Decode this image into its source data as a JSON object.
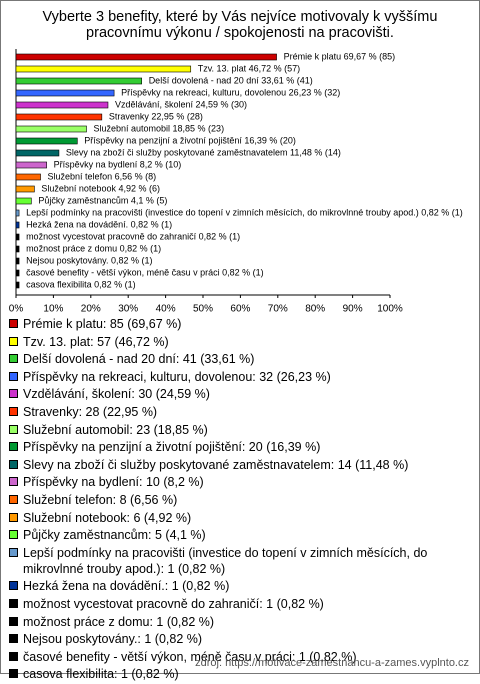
{
  "chart_data": {
    "type": "hbar",
    "title": "Vyberte 3 benefity, které by Vás nejvíce motivovaly k vyššímu pracovnímu výkonu / spokojenosti na pracovišti.",
    "values": [
      69.67,
      46.72,
      33.61,
      26.23,
      24.59,
      22.95,
      18.85,
      16.39,
      11.48,
      8.2,
      6.56,
      4.92,
      4.1,
      0.82,
      0.82,
      0.82,
      0.82,
      0.82,
      0.82,
      0.82
    ],
    "value_labels": [
      "Prémie k platu 69,67 % (85)",
      "Tzv. 13. plat 46,72 % (57)",
      "Delší dovolená - nad 20 dní 33,61 % (41)",
      "Příspěvky na rekreaci, kulturu, dovolenou 26,23 % (32)",
      "Vzdělávání, školení 24,59 % (30)",
      "Stravenky 22,95 % (28)",
      "Služební automobil 18,85 % (23)",
      "Příspěvky na penzijní a životní pojištění 16,39 % (20)",
      "Slevy na zboží či služby poskytované zaměstnavatelem 11,48 % (14)",
      "Příspěvky na bydlení 8,2 % (10)",
      "Služební telefon 6,56 % (8)",
      "Služební notebook 4,92 % (6)",
      "Půjčky zaměstnancům 4,1 % (5)",
      "Lepší podmínky na pracovišti (investice do topení v zimních měsících, do mikrovlnné trouby apod.) 0,82 % (1)",
      "Hezká žena na dovádění. 0,82 % (1)",
      "možnost vycestovat pracovně do zahraničí 0,82 % (1)",
      "možnost práce z domu 0,82 % (1)",
      "Nejsou poskytovány. 0,82 % (1)",
      "časové benefity - větší výkon, méně času v práci 0,82 % (1)",
      "casova flexibilita 0,82 % (1)"
    ],
    "legend_labels": [
      "Prémie k platu: 85 (69,67 %)",
      "Tzv. 13. plat: 57 (46,72 %)",
      "Delší dovolená - nad 20 dní: 41 (33,61 %)",
      "Příspěvky na rekreaci, kulturu, dovolenou: 32 (26,23 %)",
      "Vzdělávání, školení: 30 (24,59 %)",
      "Stravenky: 28 (22,95 %)",
      "Služební automobil: 23 (18,85 %)",
      "Příspěvky na penzijní a životní pojištění: 20 (16,39 %)",
      "Slevy na zboží či služby poskytované zaměstnavatelem: 14 (11,48 %)",
      "Příspěvky na bydlení: 10 (8,2 %)",
      "Služební telefon: 8 (6,56 %)",
      "Služební notebook: 6 (4,92 %)",
      "Půjčky zaměstnancům: 5 (4,1 %)",
      "Lepší podmínky na pracovišti (investice do topení v zimních měsících, do mikrovlnné trouby apod.): 1 (0,82 %)",
      "Hezká žena na dovádění.: 1 (0,82 %)",
      "možnost vycestovat pracovně do zahraničí: 1 (0,82 %)",
      "možnost práce z domu: 1 (0,82 %)",
      "Nejsou poskytovány.: 1 (0,82 %)",
      "časové benefity - větší výkon, méně času v práci: 1 (0,82 %)",
      "casova flexibilita: 1 (0,82 %)"
    ],
    "colors": [
      "#cc0000",
      "#ffff00",
      "#33cc33",
      "#3366ff",
      "#cc33cc",
      "#ff3300",
      "#99ff66",
      "#009933",
      "#006666",
      "#cc66cc",
      "#ff6600",
      "#ff9900",
      "#66ff33",
      "#6699cc",
      "#003399",
      "#000000",
      "#000000",
      "#000000",
      "#000000",
      "#000000"
    ],
    "xlim": [
      0,
      100
    ],
    "xticks": [
      {
        "value": 0,
        "label": "0%"
      },
      {
        "value": 10,
        "label": "10%"
      },
      {
        "value": 20,
        "label": "20%"
      },
      {
        "value": 30,
        "label": "30%"
      },
      {
        "value": 40,
        "label": "40%"
      },
      {
        "value": 50,
        "label": "50%"
      },
      {
        "value": 60,
        "label": "60%"
      },
      {
        "value": 70,
        "label": "70%"
      },
      {
        "value": 80,
        "label": "80%"
      },
      {
        "value": 90,
        "label": "90%"
      },
      {
        "value": 100,
        "label": "100%"
      }
    ],
    "source": "zdroj: https://motivace-zamestnancu-a-zames.vyplnto.cz"
  }
}
